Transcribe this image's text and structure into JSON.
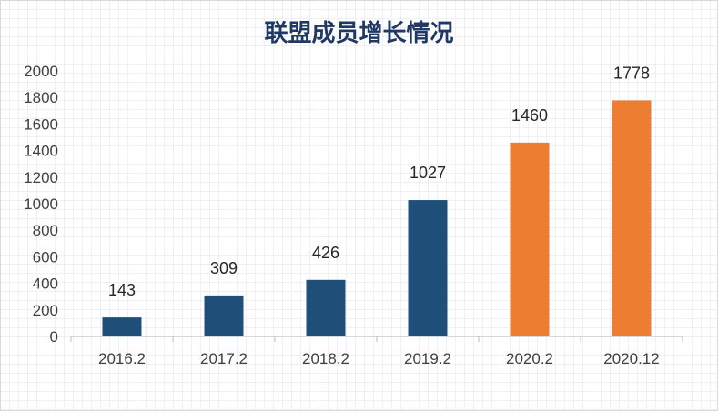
{
  "chart_data": {
    "type": "bar",
    "title": "联盟成员增长情况",
    "categories": [
      "2016.2",
      "2017.2",
      "2018.2",
      "2019.2",
      "2020.2",
      "2020.12"
    ],
    "values": [
      143,
      309,
      426,
      1027,
      1460,
      1778
    ],
    "bar_colors": [
      "#1f4e79",
      "#1f4e79",
      "#1f4e79",
      "#1f4e79",
      "#ed7d31",
      "#ed7d31"
    ],
    "y_ticks": [
      "0",
      "200",
      "400",
      "600",
      "800",
      "1000",
      "1200",
      "1400",
      "1600",
      "1800",
      "2000"
    ],
    "ylim": [
      0,
      2000
    ],
    "xlabel": "",
    "ylabel": "",
    "grid": false,
    "data_labels": true
  }
}
